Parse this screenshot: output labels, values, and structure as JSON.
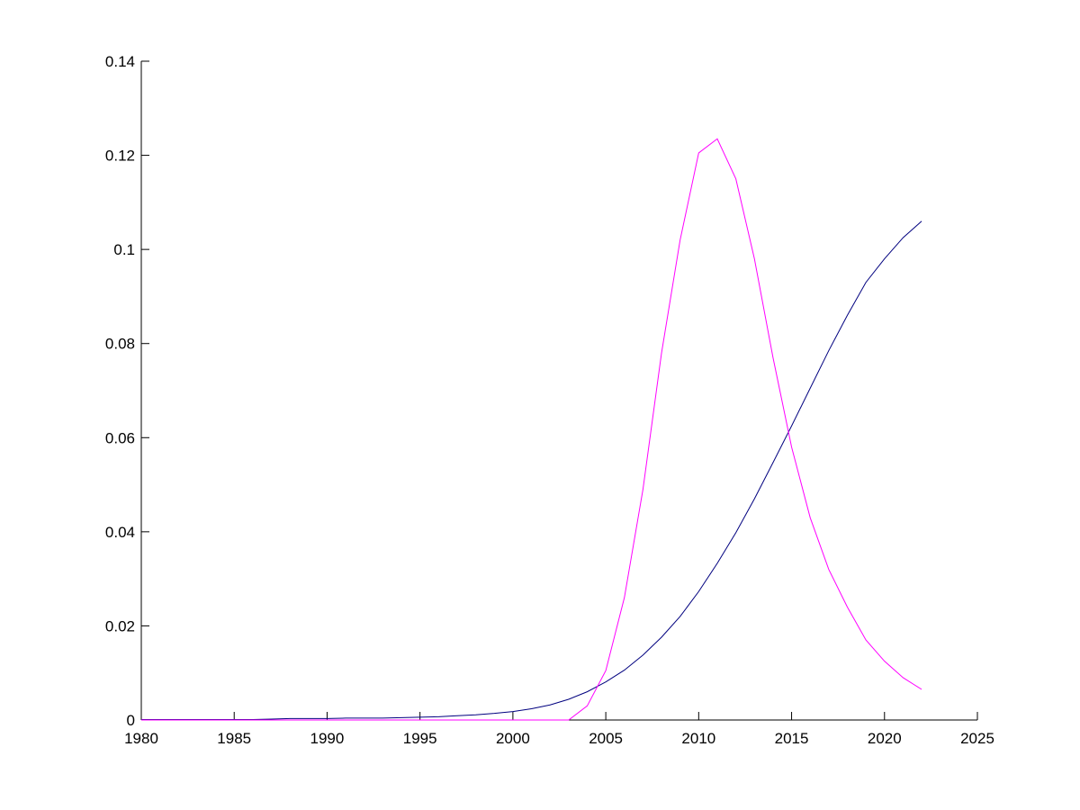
{
  "chart_data": {
    "type": "line",
    "x": [
      1980,
      1981,
      1982,
      1983,
      1984,
      1985,
      1986,
      1987,
      1988,
      1989,
      1990,
      1991,
      1992,
      1993,
      1994,
      1995,
      1996,
      1997,
      1998,
      1999,
      2000,
      2001,
      2002,
      2003,
      2004,
      2005,
      2006,
      2007,
      2008,
      2009,
      2010,
      2011,
      2012,
      2013,
      2014,
      2015,
      2016,
      2017,
      2018,
      2019,
      2020,
      2021,
      2022
    ],
    "series": [
      {
        "color": "#00007f",
        "values": [
          0.0001,
          0.0001,
          0.0001,
          0.0001,
          0.0001,
          0.0001,
          0.0001,
          0.0002,
          0.0003,
          0.0003,
          0.0003,
          0.0004,
          0.0004,
          0.0004,
          0.0005,
          0.0006,
          0.0007,
          0.0009,
          0.0011,
          0.0014,
          0.0018,
          0.0024,
          0.0032,
          0.0044,
          0.006,
          0.0081,
          0.0106,
          0.0138,
          0.0176,
          0.022,
          0.0273,
          0.0333,
          0.0398,
          0.047,
          0.0547,
          0.0625,
          0.0705,
          0.0785,
          0.086,
          0.093,
          0.098,
          0.1025,
          0.106
        ]
      },
      {
        "color": "#ff00ff",
        "values": [
          0,
          0,
          0,
          0,
          0,
          0,
          0,
          0,
          0,
          0,
          0,
          0,
          0,
          0,
          0,
          0,
          0,
          0,
          0,
          0,
          0,
          0,
          0,
          0,
          0.003,
          0.0105,
          0.026,
          0.049,
          0.078,
          0.102,
          0.1205,
          0.1235,
          0.115,
          0.098,
          0.077,
          0.058,
          0.043,
          0.032,
          0.024,
          0.017,
          0.0125,
          0.009,
          0.0065
        ]
      }
    ],
    "xlim": [
      1980,
      2025
    ],
    "xticks": [
      1980,
      1985,
      1990,
      1995,
      2000,
      2005,
      2010,
      2015,
      2020,
      2025
    ],
    "ylim": [
      0,
      0.14
    ],
    "yticks": [
      0,
      0.02,
      0.04,
      0.06,
      0.08,
      0.1,
      0.12,
      0.14
    ]
  }
}
